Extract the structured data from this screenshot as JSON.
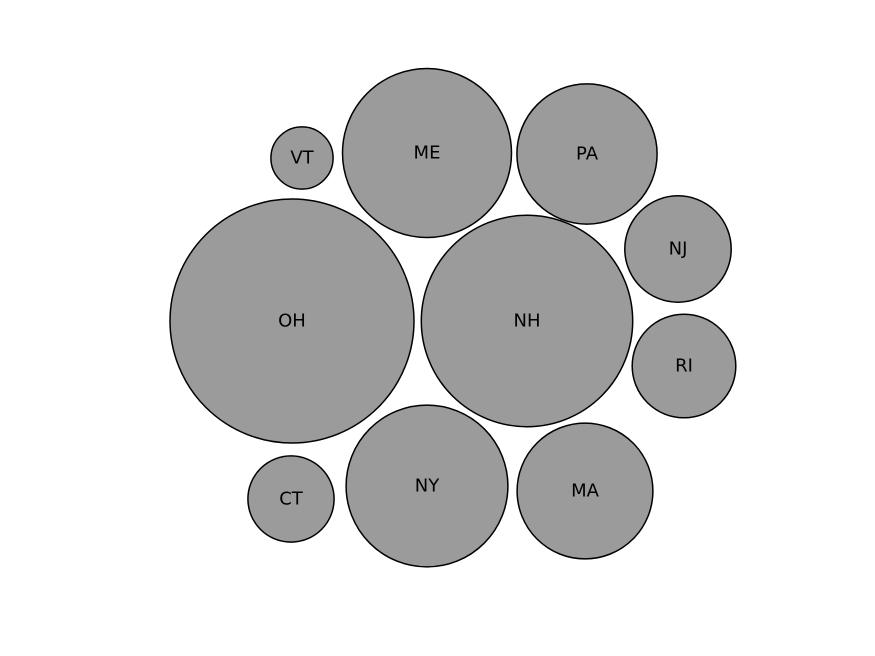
{
  "chart_data": {
    "type": "bubble",
    "title": "",
    "fill_color": "#9b9b9b",
    "stroke_color": "#000000",
    "background_color": "#ffffff",
    "bubbles": [
      {
        "label": "OH",
        "value": 100
      },
      {
        "label": "NH",
        "value": 75
      },
      {
        "label": "ME",
        "value": 48
      },
      {
        "label": "NY",
        "value": 44
      },
      {
        "label": "PA",
        "value": 33
      },
      {
        "label": "MA",
        "value": 31
      },
      {
        "label": "NJ",
        "value": 19
      },
      {
        "label": "RI",
        "value": 18
      },
      {
        "label": "CT",
        "value": 12.5
      },
      {
        "label": "VT",
        "value": 6.5
      }
    ]
  }
}
